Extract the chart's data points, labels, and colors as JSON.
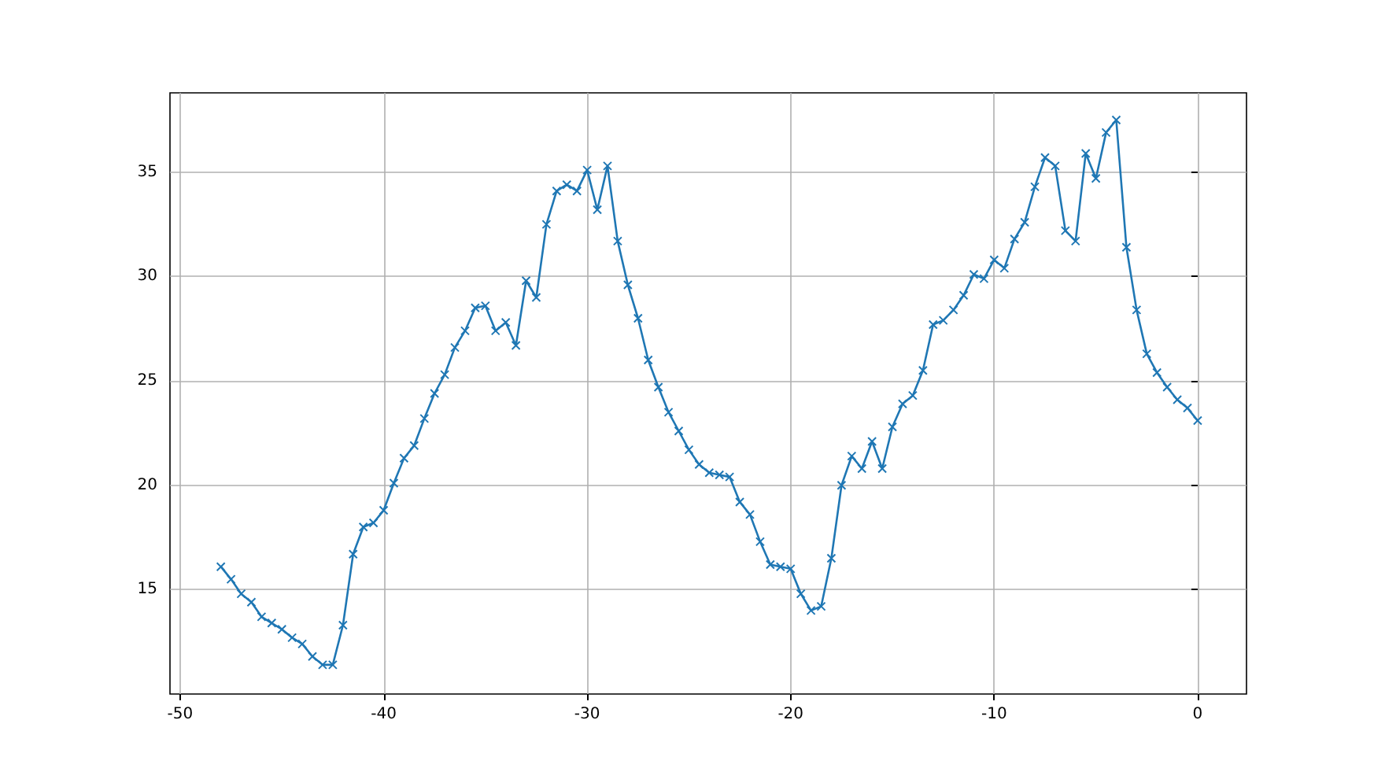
{
  "chart_data": {
    "type": "line",
    "marker": "cross",
    "grid": true,
    "x": [
      -48,
      -47.5,
      -47,
      -46.5,
      -46,
      -45.5,
      -45,
      -44.5,
      -44,
      -43.5,
      -43,
      -42.5,
      -42,
      -41.5,
      -41,
      -40.5,
      -40,
      -39.5,
      -39,
      -38.5,
      -38,
      -37.5,
      -37,
      -36.5,
      -36,
      -35.5,
      -35,
      -34.5,
      -34,
      -33.5,
      -33,
      -32.5,
      -32,
      -31.5,
      -31,
      -30.5,
      -30,
      -29.5,
      -29,
      -28.5,
      -28,
      -27.5,
      -27,
      -26.5,
      -26,
      -25.5,
      -25,
      -24.5,
      -24,
      -23.5,
      -23,
      -22.5,
      -22,
      -21.5,
      -21,
      -20.5,
      -20,
      -19.5,
      -19,
      -18.5,
      -18,
      -17.5,
      -17,
      -16.5,
      -16,
      -15.5,
      -15,
      -14.5,
      -14,
      -13.5,
      -13,
      -12.5,
      -12,
      -11.5,
      -11,
      -10.5,
      -10,
      -9.5,
      -9,
      -8.5,
      -8,
      -7.5,
      -7,
      -6.5,
      -6,
      -5.5,
      -5,
      -4.5,
      -4,
      -3.5,
      -3,
      -2.5,
      -2,
      -1.5,
      -1,
      -0.5,
      0
    ],
    "series": [
      {
        "color": "#1f77b4",
        "values": [
          16.1,
          15.5,
          14.8,
          14.4,
          13.7,
          13.4,
          13.1,
          12.7,
          12.4,
          11.8,
          11.4,
          11.4,
          13.3,
          16.7,
          18.0,
          18.2,
          18.8,
          20.1,
          21.3,
          21.9,
          23.2,
          24.4,
          25.3,
          26.6,
          27.4,
          28.5,
          28.6,
          27.4,
          27.8,
          26.7,
          29.8,
          29.0,
          32.5,
          34.1,
          34.4,
          34.1,
          35.1,
          33.2,
          35.3,
          31.7,
          29.6,
          28.0,
          26.0,
          24.7,
          23.5,
          22.6,
          21.7,
          21.0,
          20.6,
          20.5,
          20.4,
          19.2,
          18.6,
          17.3,
          16.2,
          16.1,
          16.0,
          14.8,
          14.0,
          14.2,
          16.5,
          20.0,
          21.4,
          20.8,
          22.1,
          20.8,
          22.8,
          23.9,
          24.3,
          25.5,
          27.7,
          27.9,
          28.4,
          29.1,
          30.1,
          29.9,
          30.8,
          30.4,
          31.8,
          32.6,
          34.3,
          35.7,
          35.3,
          32.2,
          31.7,
          35.9,
          34.7,
          36.9,
          37.5,
          31.4,
          28.4,
          26.3,
          25.4,
          24.7,
          24.1,
          23.7,
          23.1
        ]
      }
    ],
    "xlim": [
      -50.5,
      2.4
    ],
    "xticks": [
      -50,
      -40,
      -30,
      -20,
      -10,
      0
    ],
    "ylim": [
      10,
      38.8
    ],
    "yticks": [
      15,
      20,
      25,
      30,
      35
    ]
  }
}
